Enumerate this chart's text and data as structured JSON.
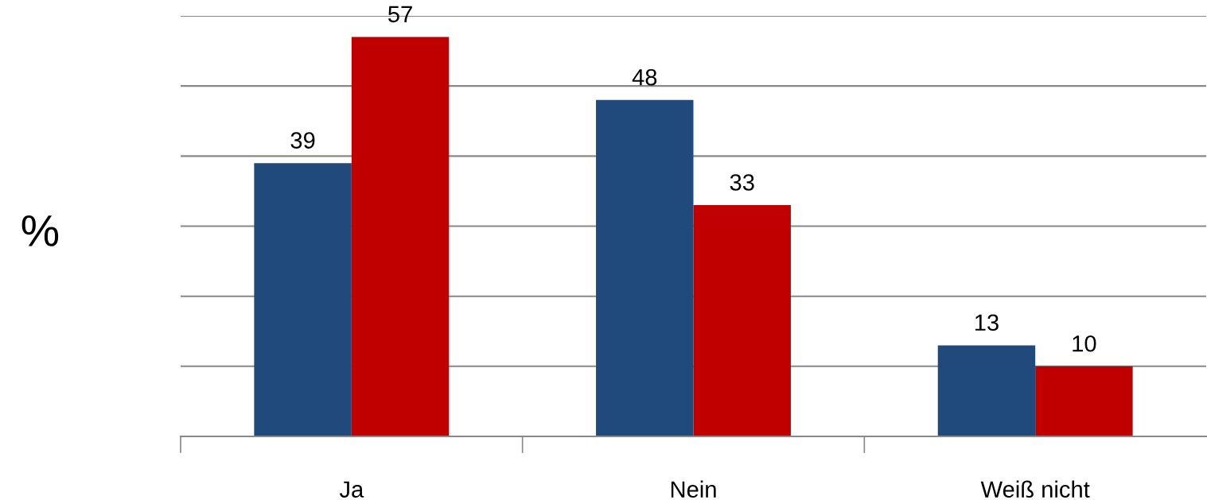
{
  "chart_data": {
    "type": "bar",
    "ylabel": "%",
    "categories": [
      "Ja",
      "Nein",
      "Weiß nicht"
    ],
    "series": [
      {
        "color": "#214a7c",
        "values": [
          39,
          48,
          13
        ]
      },
      {
        "color": "#c00000",
        "values": [
          57,
          33,
          10
        ]
      }
    ],
    "ylim": [
      0,
      60
    ],
    "yticks": [
      0,
      10,
      20,
      30,
      40,
      50,
      60
    ],
    "tick_labels": "x",
    "grid": "y",
    "legend": false,
    "data_labels": true
  }
}
